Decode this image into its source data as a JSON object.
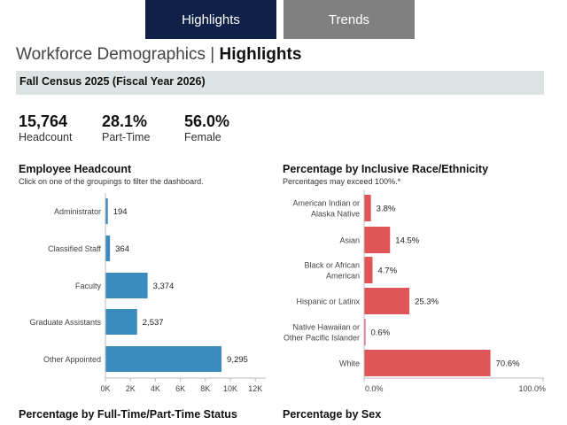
{
  "tabs": {
    "highlights": "Highlights",
    "trends": "Trends"
  },
  "title": {
    "main": "Workforce Demographics",
    "sep": "|",
    "section": "Highlights"
  },
  "census": "Fall Census 2025 (Fiscal Year 2026)",
  "kpis": [
    {
      "value": "15,764",
      "label": "Headcount"
    },
    {
      "value": "28.1%",
      "label": "Part-Time"
    },
    {
      "value": "56.0%",
      "label": "Female"
    }
  ],
  "headcount": {
    "title": "Employee Headcount",
    "subtitle": "Click on one of the groupings to filter the dashboard."
  },
  "race": {
    "title": "Percentage by Inclusive Race/Ethnicity",
    "subtitle": "Percentages may exceed 100%.*"
  },
  "bottom": {
    "ftpt": "Percentage by Full-Time/Part-Time Status",
    "sex": "Percentage by Sex"
  },
  "colors": {
    "blue": "#3a8bbf",
    "red": "#e05558"
  },
  "chart_data": [
    {
      "type": "bar",
      "orientation": "horizontal",
      "title": "Employee Headcount",
      "categories": [
        "Administrator",
        "Classified Staff",
        "Faculty",
        "Graduate Assistants",
        "Other Appointed"
      ],
      "values": [
        194,
        364,
        3374,
        2537,
        9295
      ],
      "labels": [
        "194",
        "364",
        "3,374",
        "2,537",
        "9,295"
      ],
      "xlim": [
        0,
        12000
      ],
      "ticks": [
        0,
        2000,
        4000,
        6000,
        8000,
        10000,
        12000
      ],
      "tick_labels": [
        "0K",
        "2K",
        "4K",
        "6K",
        "8K",
        "10K",
        "12K"
      ]
    },
    {
      "type": "bar",
      "orientation": "horizontal",
      "title": "Percentage by Inclusive Race/Ethnicity",
      "categories": [
        [
          "American Indian or",
          "Alaska Native"
        ],
        [
          "Asian"
        ],
        [
          "Black or African",
          "American"
        ],
        [
          "Hispanic or Latinx"
        ],
        [
          "Native Hawaiian or",
          "Other Pacific Islander"
        ],
        [
          "White"
        ]
      ],
      "values": [
        3.8,
        14.5,
        4.7,
        25.3,
        0.6,
        70.6
      ],
      "labels": [
        "3.8%",
        "14.5%",
        "4.7%",
        "25.3%",
        "0.6%",
        "70.6%"
      ],
      "xlim": [
        0,
        100
      ],
      "ticks": [
        0,
        100
      ],
      "tick_labels": [
        "0.0%",
        "100.0%"
      ]
    }
  ]
}
